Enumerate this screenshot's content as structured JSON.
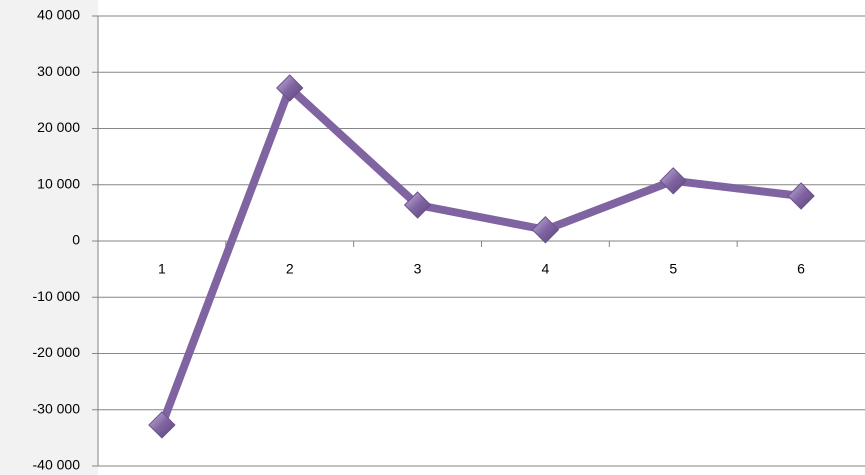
{
  "chart_data": {
    "type": "line",
    "categories": [
      "1",
      "2",
      "3",
      "4",
      "5",
      "6"
    ],
    "values": [
      -32700,
      27200,
      6400,
      2000,
      10700,
      8000
    ],
    "color": "#8064a2",
    "ylim": [
      -40000,
      40000
    ],
    "yticks": [
      {
        "value": -40000,
        "label": "-40 000"
      },
      {
        "value": -30000,
        "label": "-30 000"
      },
      {
        "value": -20000,
        "label": "-20 000"
      },
      {
        "value": -10000,
        "label": "-10 000"
      },
      0,
      {
        "value": 10000,
        "label": "10 000"
      },
      {
        "value": 20000,
        "label": "20 000"
      },
      {
        "value": 30000,
        "label": "30 000"
      },
      {
        "value": 40000,
        "label": "40 000"
      }
    ],
    "grid": true
  }
}
